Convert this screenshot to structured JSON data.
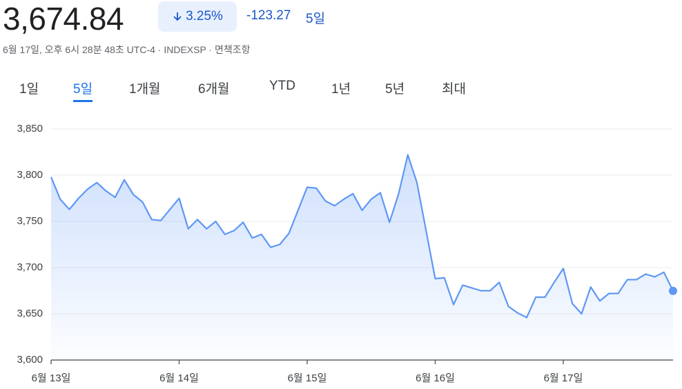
{
  "header": {
    "price": "3,674.84",
    "change_percent": "3.25%",
    "change": "-123.27",
    "period": "5일",
    "subtitle": "6월 17일, 오후 6시 28분 48초 UTC-4 · INDEXSP · 면책조항"
  },
  "tabs": [
    "1일",
    "5일",
    "1개월",
    "6개월",
    "YTD",
    "1년",
    "5년",
    "최대"
  ],
  "chart_data": {
    "type": "area",
    "color": "#5e97f6",
    "grid": true,
    "categories": [
      "6월 13일",
      null,
      null,
      null,
      null,
      null,
      null,
      null,
      null,
      null,
      null,
      null,
      null,
      null,
      "6월 14일",
      null,
      null,
      null,
      null,
      null,
      null,
      null,
      null,
      null,
      null,
      null,
      null,
      null,
      "6월 15일",
      null,
      null,
      null,
      null,
      null,
      null,
      null,
      null,
      null,
      null,
      null,
      null,
      null,
      "6월 16일",
      null,
      null,
      null,
      null,
      null,
      null,
      null,
      null,
      null,
      null,
      null,
      null,
      null,
      "6월 17일",
      null,
      null,
      null,
      null,
      null,
      null,
      null,
      null,
      null,
      null,
      null,
      null
    ],
    "values": [
      3798,
      3774,
      3763,
      3775,
      3785,
      3792,
      3783,
      3776,
      3795,
      3779,
      3771,
      3752,
      3751,
      3763,
      3775,
      3742,
      3752,
      3742,
      3750,
      3736,
      3740,
      3749,
      3732,
      3736,
      3722,
      3725,
      3737,
      3762,
      3787,
      3786,
      3772,
      3767,
      3774,
      3780,
      3762,
      3774,
      3781,
      3749,
      3780,
      3822,
      3792,
      3740,
      3688,
      3689,
      3660,
      3681,
      3678,
      3675,
      3675,
      3684,
      3658,
      3651,
      3646,
      3668,
      3668,
      3684,
      3699,
      3661,
      3650,
      3679,
      3664,
      3672,
      3672,
      3687,
      3687,
      3693,
      3690,
      3695,
      3674.84
    ],
    "ylim": [
      3600,
      3850
    ],
    "yticks": [
      {
        "value": 3600,
        "label": "3,600"
      },
      {
        "value": 3650,
        "label": "3,650"
      },
      {
        "value": 3700,
        "label": "3,700"
      },
      {
        "value": 3750,
        "label": "3,750"
      },
      {
        "value": 3800,
        "label": "3,800"
      },
      {
        "value": 3850,
        "label": "3,850"
      }
    ]
  }
}
